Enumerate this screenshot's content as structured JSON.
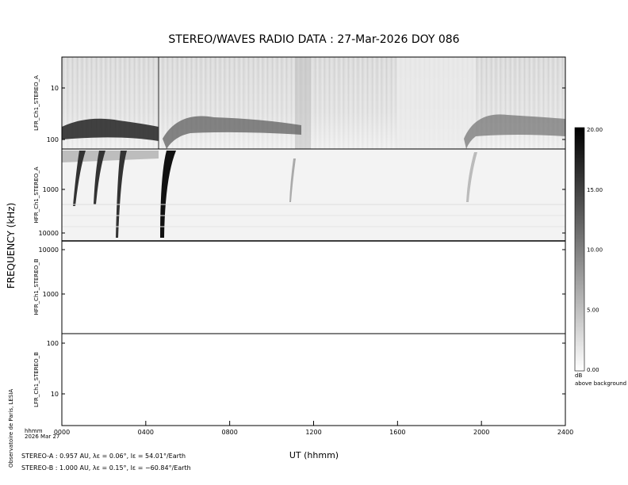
{
  "header": {
    "title": "STEREO/WAVES  RADIO  DATA : 27-Mar-2026  DOY 086"
  },
  "y_axis_title": "FREQUENCY (kHz)",
  "x_axis_title": "UT (hhmm)",
  "panels": [
    {
      "label": "LFR_Ch1_STEREO_A",
      "ticks": [
        "10",
        "100"
      ]
    },
    {
      "label": "HFR_Ch1_STEREO_A",
      "ticks": [
        "1000",
        "10000"
      ]
    },
    {
      "label": "HFR_Ch1_STEREO_B",
      "ticks": [
        "10000",
        "1000"
      ]
    },
    {
      "label": "LFR_Ch1_STEREO_B",
      "ticks": [
        "100",
        "10"
      ]
    }
  ],
  "x_ticks": [
    "0000",
    "0400",
    "0800",
    "1200",
    "1600",
    "2000",
    "2400"
  ],
  "x_unit_label": "hhmm",
  "date_label": "2026 Mar 27",
  "colorbar": {
    "ticks": [
      "20.00",
      "15.00",
      "10.00",
      "5.00",
      "0.00"
    ],
    "unit": "dB",
    "caption": "above background"
  },
  "credit": "Observatoire de Paris, LESIA",
  "footer": [
    "STEREO-A : 0.957 AU, λε = 0.06°, lε = 54.01°/Earth",
    "STEREO-B : 1.000 AU, λε = 0.15°, lε = −60.84°/Earth"
  ]
}
